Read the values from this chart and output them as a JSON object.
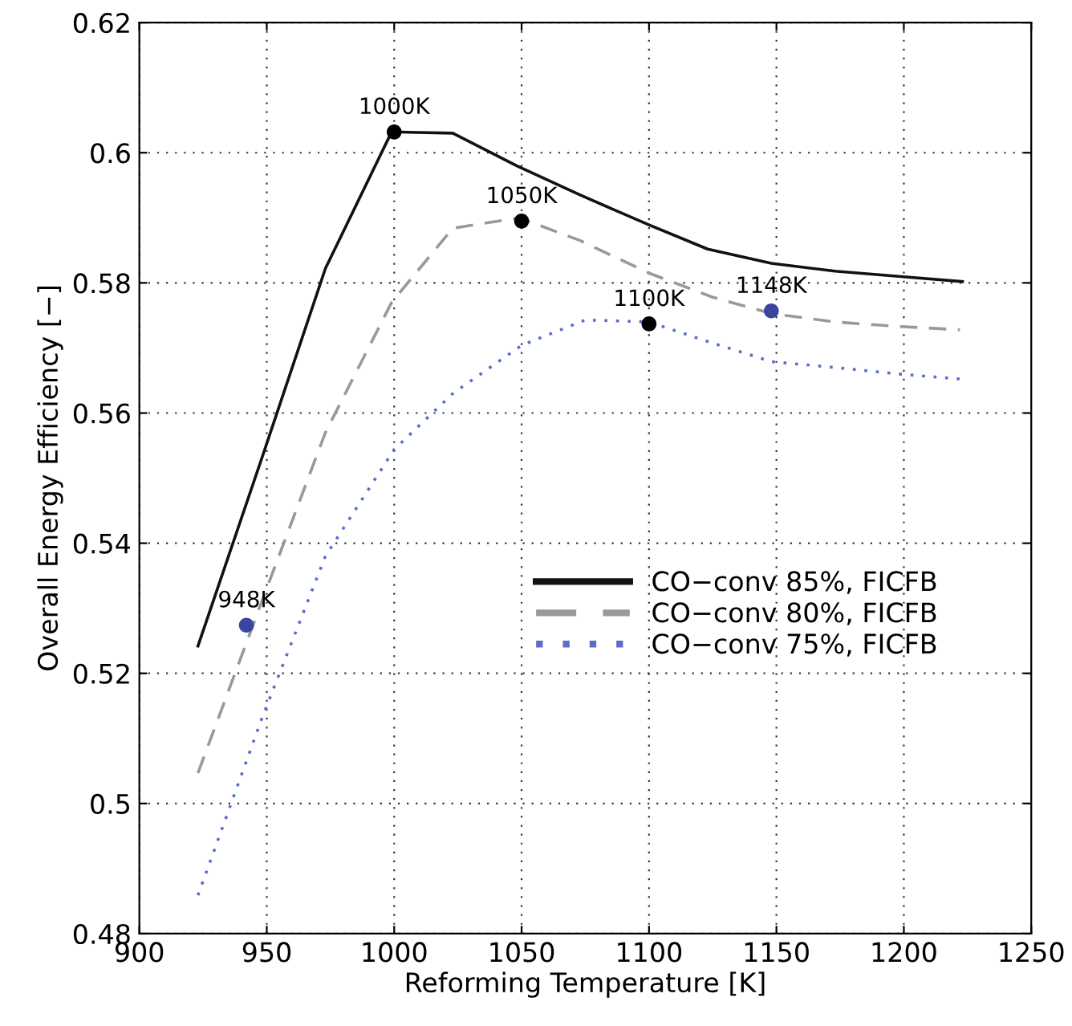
{
  "chart_data": {
    "type": "line",
    "xlabel": "Reforming Temperature [K]",
    "ylabel": "Overall Energy Efficiency [−]",
    "xlim": [
      900,
      1250
    ],
    "xticks": [
      900,
      950,
      1000,
      1050,
      1100,
      1150,
      1200,
      1250
    ],
    "ylim": [
      0.48,
      0.62
    ],
    "yticks": [
      0.48,
      0.5,
      0.52,
      0.54,
      0.56,
      0.58,
      0.6,
      0.62
    ],
    "grid": true,
    "legend": "center",
    "series": [
      {
        "name": "CO−conv 85%, FICFB",
        "color": "#111111",
        "line_style": "solid",
        "x": [
          923,
          948,
          973,
          999,
          1023,
          1048,
          1073,
          1100,
          1123,
          1148,
          1173,
          1198,
          1223
        ],
        "values": [
          0.5242,
          0.553,
          0.5822,
          0.6032,
          0.603,
          0.598,
          0.5935,
          0.5889,
          0.5852,
          0.583,
          0.5818,
          0.581,
          0.5802
        ]
      },
      {
        "name": "CO−conv 80%, FICFB",
        "color": "#999999",
        "line_style": "dashed",
        "x": [
          923,
          948,
          973,
          999,
          1023,
          1049,
          1073,
          1100,
          1125,
          1148,
          1173,
          1198,
          1222
        ],
        "values": [
          0.5047,
          0.531,
          0.557,
          0.577,
          0.5884,
          0.59,
          0.5865,
          0.5815,
          0.5778,
          0.5753,
          0.574,
          0.5733,
          0.5728
        ]
      },
      {
        "name": "CO−conv 75%, FICFB",
        "color": "#5a6ec8",
        "line_style": "dotted",
        "x": [
          923,
          948,
          973,
          1000,
          1023,
          1050,
          1075,
          1100,
          1123,
          1148,
          1173,
          1198,
          1223
        ],
        "values": [
          0.4859,
          0.513,
          0.538,
          0.5544,
          0.563,
          0.5704,
          0.5743,
          0.574,
          0.571,
          0.5679,
          0.567,
          0.566,
          0.5652
        ]
      },
      {
        "type": "scatter",
        "marker": "circle",
        "x": [
          942,
          1000,
          1050,
          1100,
          1148
        ],
        "values": [
          0.5274,
          0.6032,
          0.5895,
          0.5737,
          0.5757
        ],
        "colors": [
          "#3a45a0",
          "#000000",
          "#000000",
          "#000000",
          "#3a45a0"
        ]
      }
    ],
    "annotations": [
      {
        "text": "948K",
        "x": 942,
        "y": 0.5274
      },
      {
        "text": "1000K",
        "x": 1000,
        "y": 0.6032
      },
      {
        "text": "1050K",
        "x": 1050,
        "y": 0.5895
      },
      {
        "text": "1100K",
        "x": 1100,
        "y": 0.5737
      },
      {
        "text": "1148K",
        "x": 1148,
        "y": 0.5757
      }
    ]
  }
}
